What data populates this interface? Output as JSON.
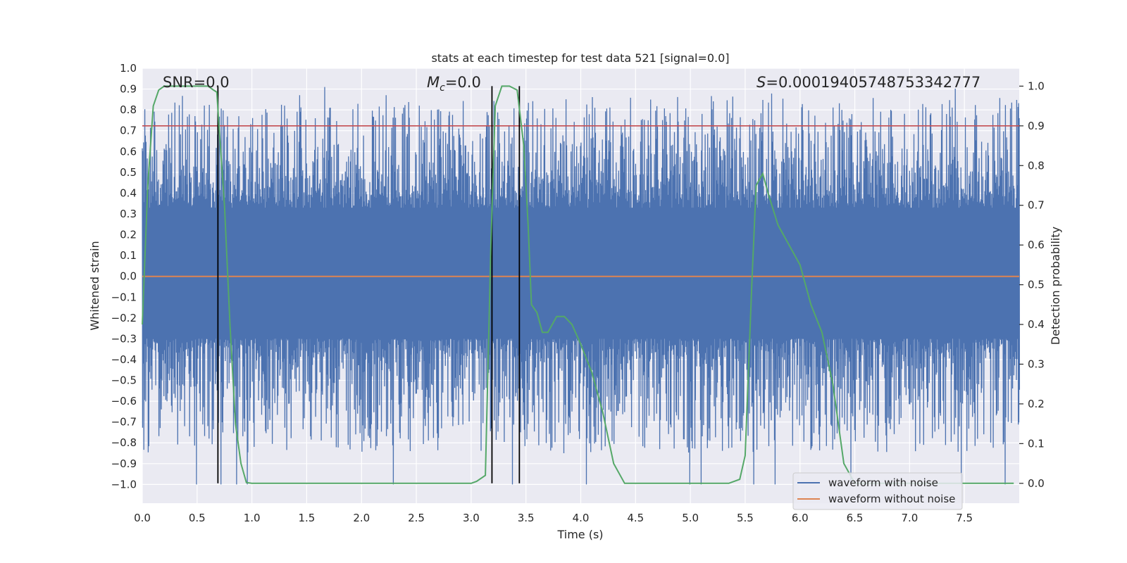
{
  "chart_data": {
    "type": "line",
    "title": "stats at each timestep for test data 521 [signal=0.0]",
    "xlabel": "Time (s)",
    "ylabel": "Whitened strain",
    "y2label": "Detection probability",
    "xlim": [
      0.0,
      8.0
    ],
    "ylim": [
      -1.09,
      1.0
    ],
    "y2lim": [
      -0.05,
      1.045
    ],
    "xticks": [
      "0.0",
      "0.5",
      "1.0",
      "1.5",
      "2.0",
      "2.5",
      "3.0",
      "3.5",
      "4.0",
      "4.5",
      "5.0",
      "5.5",
      "6.0",
      "6.5",
      "7.0",
      "7.5"
    ],
    "yticks": [
      "1.0",
      "0.9",
      "0.8",
      "0.7",
      "0.6",
      "0.5",
      "0.4",
      "0.3",
      "0.2",
      "0.1",
      "0.0",
      "-0.1",
      "-0.2",
      "-0.3",
      "-0.4",
      "-0.5",
      "-0.6",
      "-0.7",
      "-0.8",
      "-0.9",
      "-1.0"
    ],
    "y2ticks": [
      "1.0",
      "0.9",
      "0.8",
      "0.7",
      "0.6",
      "0.5",
      "0.4",
      "0.3",
      "0.2",
      "0.1",
      "0.0"
    ],
    "annotations": {
      "snr": "SNR=0.0",
      "mc_symbol": "M",
      "mc_sub": "c",
      "mc_value": "=0.0",
      "s_symbol": "S",
      "s_value": "=0.00019405748753342777"
    },
    "legend": {
      "position": "lower-right",
      "entries": [
        "waveform with noise",
        "waveform without noise"
      ]
    },
    "series": [
      {
        "name": "waveform with noise",
        "color": "#4c72b0",
        "axis": "left",
        "description": "dense noise between about -1.0 and 0.91"
      },
      {
        "name": "waveform without noise",
        "color": "#dd8452",
        "axis": "left",
        "values_constant": 0.0
      },
      {
        "name": "detection probability",
        "color": "#55a868",
        "axis": "right",
        "x": [
          0.0,
          0.05,
          0.1,
          0.15,
          0.2,
          0.3,
          0.4,
          0.5,
          0.6,
          0.65,
          0.68,
          0.7,
          0.75,
          0.8,
          0.85,
          0.9,
          0.95,
          1.0,
          2.0,
          3.0,
          3.05,
          3.13,
          3.18,
          3.22,
          3.28,
          3.35,
          3.42,
          3.48,
          3.52,
          3.55,
          3.6,
          3.65,
          3.7,
          3.78,
          3.85,
          3.92,
          4.0,
          4.1,
          4.2,
          4.3,
          4.4,
          4.5,
          5.0,
          5.35,
          5.45,
          5.5,
          5.56,
          5.6,
          5.66,
          5.72,
          5.8,
          6.0,
          6.1,
          6.2,
          6.3,
          6.4,
          6.5,
          7.0,
          7.5,
          7.95
        ],
        "values": [
          0.4,
          0.75,
          0.95,
          0.99,
          1.0,
          1.0,
          1.0,
          1.0,
          1.0,
          0.99,
          0.985,
          0.9,
          0.7,
          0.4,
          0.15,
          0.05,
          0.002,
          0.0,
          0.0,
          0.0,
          0.005,
          0.02,
          0.6,
          0.95,
          1.0,
          1.0,
          0.99,
          0.85,
          0.65,
          0.45,
          0.43,
          0.38,
          0.38,
          0.42,
          0.42,
          0.4,
          0.35,
          0.28,
          0.18,
          0.05,
          0.0,
          0.0,
          0.0,
          0.0,
          0.01,
          0.07,
          0.5,
          0.75,
          0.78,
          0.72,
          0.65,
          0.55,
          0.45,
          0.38,
          0.25,
          0.05,
          0.0,
          0.0,
          0.0,
          0.0
        ]
      },
      {
        "name": "threshold",
        "color": "#c44e52",
        "axis": "right",
        "values_constant": 0.9
      }
    ],
    "vlines": [
      0.69,
      3.19,
      3.44
    ]
  }
}
